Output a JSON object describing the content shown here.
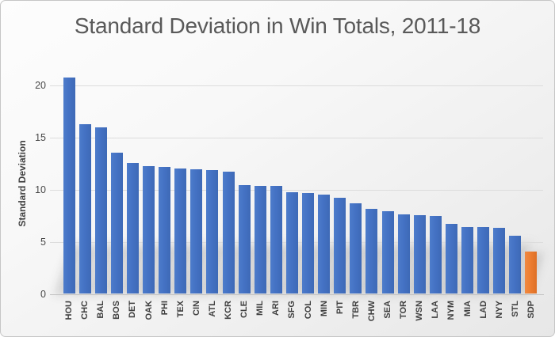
{
  "chart_data": {
    "type": "bar",
    "title": "Standard Deviation in Win Totals, 2011-18",
    "xlabel": "",
    "ylabel": "Standard Deviation",
    "categories": [
      "HOU",
      "CHC",
      "BAL",
      "BOS",
      "DET",
      "OAK",
      "PHI",
      "TEX",
      "CIN",
      "ATL",
      "KCR",
      "CLE",
      "MIL",
      "ARI",
      "SFG",
      "COL",
      "MIN",
      "PIT",
      "TBR",
      "CHW",
      "SEA",
      "TOR",
      "WSN",
      "LAA",
      "NYM",
      "MIA",
      "LAD",
      "NYY",
      "STL",
      "SDP"
    ],
    "values": [
      20.7,
      16.2,
      15.9,
      13.5,
      12.5,
      12.2,
      12.1,
      12.0,
      11.9,
      11.8,
      11.7,
      10.4,
      10.3,
      10.3,
      9.7,
      9.6,
      9.5,
      9.2,
      8.6,
      8.1,
      7.9,
      7.6,
      7.5,
      7.4,
      6.7,
      6.4,
      6.4,
      6.3,
      5.5,
      4.0
    ],
    "yticks": [
      0,
      5,
      10,
      15,
      20
    ],
    "ylim": [
      0,
      21.4
    ],
    "grid": true,
    "legend_position": "none",
    "highlight_category": "SDP",
    "colors": {
      "bar_default": "#4472C4",
      "bar_highlight": "#ED7D31",
      "title_text": "#595959",
      "axis_text": "#404040",
      "gridline": "#DCDCDC"
    }
  }
}
